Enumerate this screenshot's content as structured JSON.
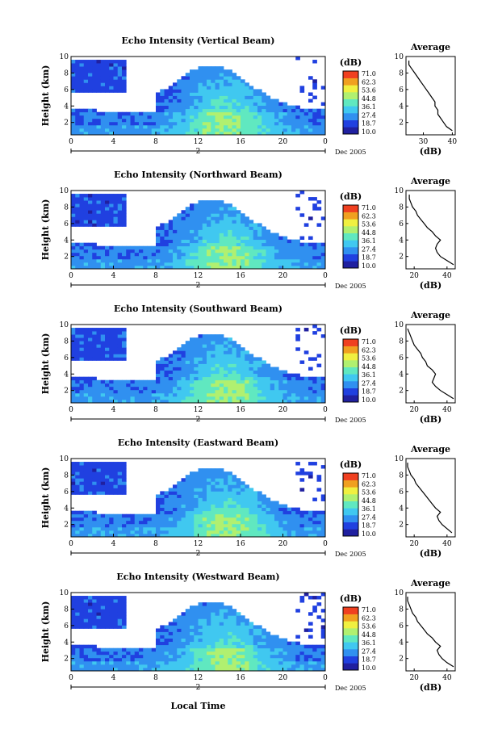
{
  "colorbar": {
    "unit_label": "(dB)",
    "levels": [
      "71.0",
      "62.3",
      "53.6",
      "44.8",
      "36.1",
      "27.4",
      "18.7",
      "10.0"
    ],
    "colors": [
      "#2020a0",
      "#2040e0",
      "#3090f0",
      "#40c8f0",
      "#60e8c0",
      "#b0f070",
      "#f0f040",
      "#f0a020",
      "#f04020"
    ]
  },
  "date_label": "Dec 2005",
  "day_marker": "2",
  "xlabel": "Local Time",
  "chart_data": [
    {
      "type": "heatmap",
      "title": "Echo Intensity (Vertical Beam)",
      "ylabel": "Height (km)",
      "xticks": [
        "0",
        "4",
        "8",
        "12",
        "16",
        "20",
        "0"
      ],
      "yticks": [
        "2",
        "4",
        "6",
        "8",
        "10"
      ],
      "xlim": [
        0,
        24
      ],
      "ylim": [
        0.5,
        10
      ],
      "profile": {
        "title": "Average",
        "xlabel": "(dB)",
        "xticks": [
          "30",
          "40"
        ],
        "xlim": [
          24,
          41
        ],
        "yticks": [
          "2",
          "4",
          "6",
          "8",
          "10"
        ],
        "heights": [
          1,
          1.5,
          2,
          2.5,
          3,
          3.5,
          4,
          4.5,
          5,
          5.5,
          6,
          6.5,
          7,
          7.5,
          8,
          8.5,
          9,
          9.5
        ],
        "values": [
          40,
          38,
          37,
          36,
          35,
          35,
          34,
          34,
          33,
          32,
          31,
          30,
          29,
          28,
          27,
          26,
          25,
          25
        ]
      }
    },
    {
      "type": "heatmap",
      "title": "Echo Intensity (Northward Beam)",
      "ylabel": "Height (km)",
      "xticks": [
        "0",
        "4",
        "8",
        "12",
        "16",
        "20",
        "0"
      ],
      "yticks": [
        "2",
        "4",
        "6",
        "8",
        "10"
      ],
      "xlim": [
        0,
        24
      ],
      "ylim": [
        0.5,
        10
      ],
      "profile": {
        "title": "Average",
        "xlabel": "(dB)",
        "xticks": [
          "20",
          "40"
        ],
        "xlim": [
          15,
          45
        ],
        "yticks": [
          "2",
          "4",
          "6",
          "8",
          "10"
        ],
        "heights": [
          1,
          1.5,
          2,
          2.5,
          3,
          3.5,
          4,
          4.5,
          5,
          5.5,
          6,
          6.5,
          7,
          7.5,
          8,
          8.5,
          9,
          9.5
        ],
        "values": [
          44,
          40,
          36,
          34,
          33,
          34,
          36,
          33,
          31,
          28,
          26,
          24,
          22,
          21,
          19,
          18,
          17,
          17
        ]
      }
    },
    {
      "type": "heatmap",
      "title": "Echo Intensity (Southward Beam)",
      "ylabel": "Height (km)",
      "xticks": [
        "0",
        "4",
        "8",
        "12",
        "16",
        "20",
        "0"
      ],
      "yticks": [
        "2",
        "4",
        "6",
        "8",
        "10"
      ],
      "xlim": [
        0,
        24
      ],
      "ylim": [
        0.5,
        10
      ],
      "profile": {
        "title": "Average",
        "xlabel": "(dB)",
        "xticks": [
          "20",
          "40"
        ],
        "xlim": [
          15,
          45
        ],
        "yticks": [
          "2",
          "4",
          "6",
          "8",
          "10"
        ],
        "heights": [
          1,
          1.5,
          2,
          2.5,
          3,
          3.5,
          4,
          4.5,
          5,
          5.5,
          6,
          6.5,
          7,
          7.5,
          8,
          8.5,
          9,
          9.5
        ],
        "values": [
          44,
          40,
          36,
          33,
          31,
          32,
          33,
          31,
          28,
          27,
          25,
          24,
          22,
          20,
          19,
          18,
          17,
          16
        ]
      }
    },
    {
      "type": "heatmap",
      "title": "Echo Intensity (Eastward Beam)",
      "ylabel": "Height (km)",
      "xticks": [
        "0",
        "4",
        "8",
        "12",
        "16",
        "20",
        "0"
      ],
      "yticks": [
        "2",
        "4",
        "6",
        "8",
        "10"
      ],
      "xlim": [
        0,
        24
      ],
      "ylim": [
        0.5,
        10
      ],
      "profile": {
        "title": "Average",
        "xlabel": "(dB)",
        "xticks": [
          "20",
          "40"
        ],
        "xlim": [
          15,
          45
        ],
        "yticks": [
          "2",
          "4",
          "6",
          "8",
          "10"
        ],
        "heights": [
          1,
          1.5,
          2,
          2.5,
          3,
          3.5,
          4,
          4.5,
          5,
          5.5,
          6,
          6.5,
          7,
          7.5,
          8,
          8.5,
          9,
          9.5
        ],
        "values": [
          43,
          40,
          37,
          35,
          34,
          36,
          33,
          31,
          29,
          27,
          25,
          23,
          21,
          20,
          18,
          17,
          16,
          16
        ]
      }
    },
    {
      "type": "heatmap",
      "title": "Echo Intensity (Westward Beam)",
      "ylabel": "Height (km)",
      "xticks": [
        "0",
        "4",
        "8",
        "12",
        "16",
        "20",
        "0"
      ],
      "yticks": [
        "2",
        "4",
        "6",
        "8",
        "10"
      ],
      "xlim": [
        0,
        24
      ],
      "ylim": [
        0.5,
        10
      ],
      "profile": {
        "title": "Average",
        "xlabel": "(dB)",
        "xticks": [
          "20",
          "40"
        ],
        "xlim": [
          15,
          45
        ],
        "yticks": [
          "2",
          "4",
          "6",
          "8",
          "10"
        ],
        "heights": [
          1,
          1.5,
          2,
          2.5,
          3,
          3.5,
          4,
          4.5,
          5,
          5.5,
          6,
          6.5,
          7,
          7.5,
          8,
          8.5,
          9,
          9.5
        ],
        "values": [
          44,
          40,
          37,
          35,
          34,
          36,
          33,
          31,
          28,
          26,
          24,
          22,
          21,
          19,
          18,
          17,
          16,
          16
        ]
      }
    }
  ]
}
